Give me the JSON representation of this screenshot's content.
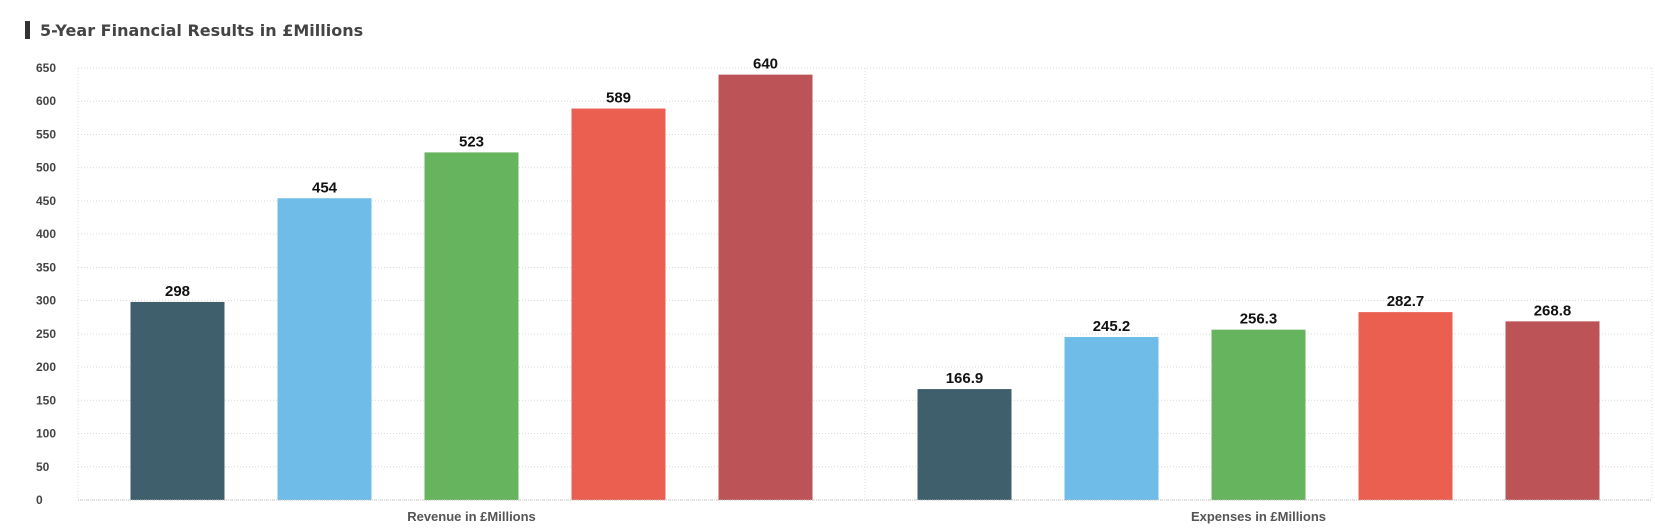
{
  "title": "5-Year Financial Results in £Millions",
  "chart_data": {
    "type": "bar",
    "title": "5-Year Financial Results in £Millions",
    "categories": [
      "Revenue in £Millions",
      "Expenses in £Millions"
    ],
    "series": [
      {
        "color": "#3f5f6c",
        "values": [
          298,
          166.9
        ]
      },
      {
        "color": "#6fbce8",
        "values": [
          454,
          245.2
        ]
      },
      {
        "color": "#66b55e",
        "values": [
          523,
          256.3
        ]
      },
      {
        "color": "#eb5f51",
        "values": [
          589,
          282.7
        ]
      },
      {
        "color": "#bc5457",
        "values": [
          640,
          268.8
        ]
      }
    ],
    "value_labels": [
      [
        "298",
        "166.9"
      ],
      [
        "454",
        "245.2"
      ],
      [
        "523",
        "256.3"
      ],
      [
        "589",
        "282.7"
      ],
      [
        "640",
        "268.8"
      ]
    ],
    "yticks": [
      0,
      50,
      100,
      150,
      200,
      250,
      300,
      350,
      400,
      450,
      500,
      550,
      600,
      650
    ],
    "ylim": [
      0,
      650
    ],
    "grid": true,
    "legend": "none"
  }
}
